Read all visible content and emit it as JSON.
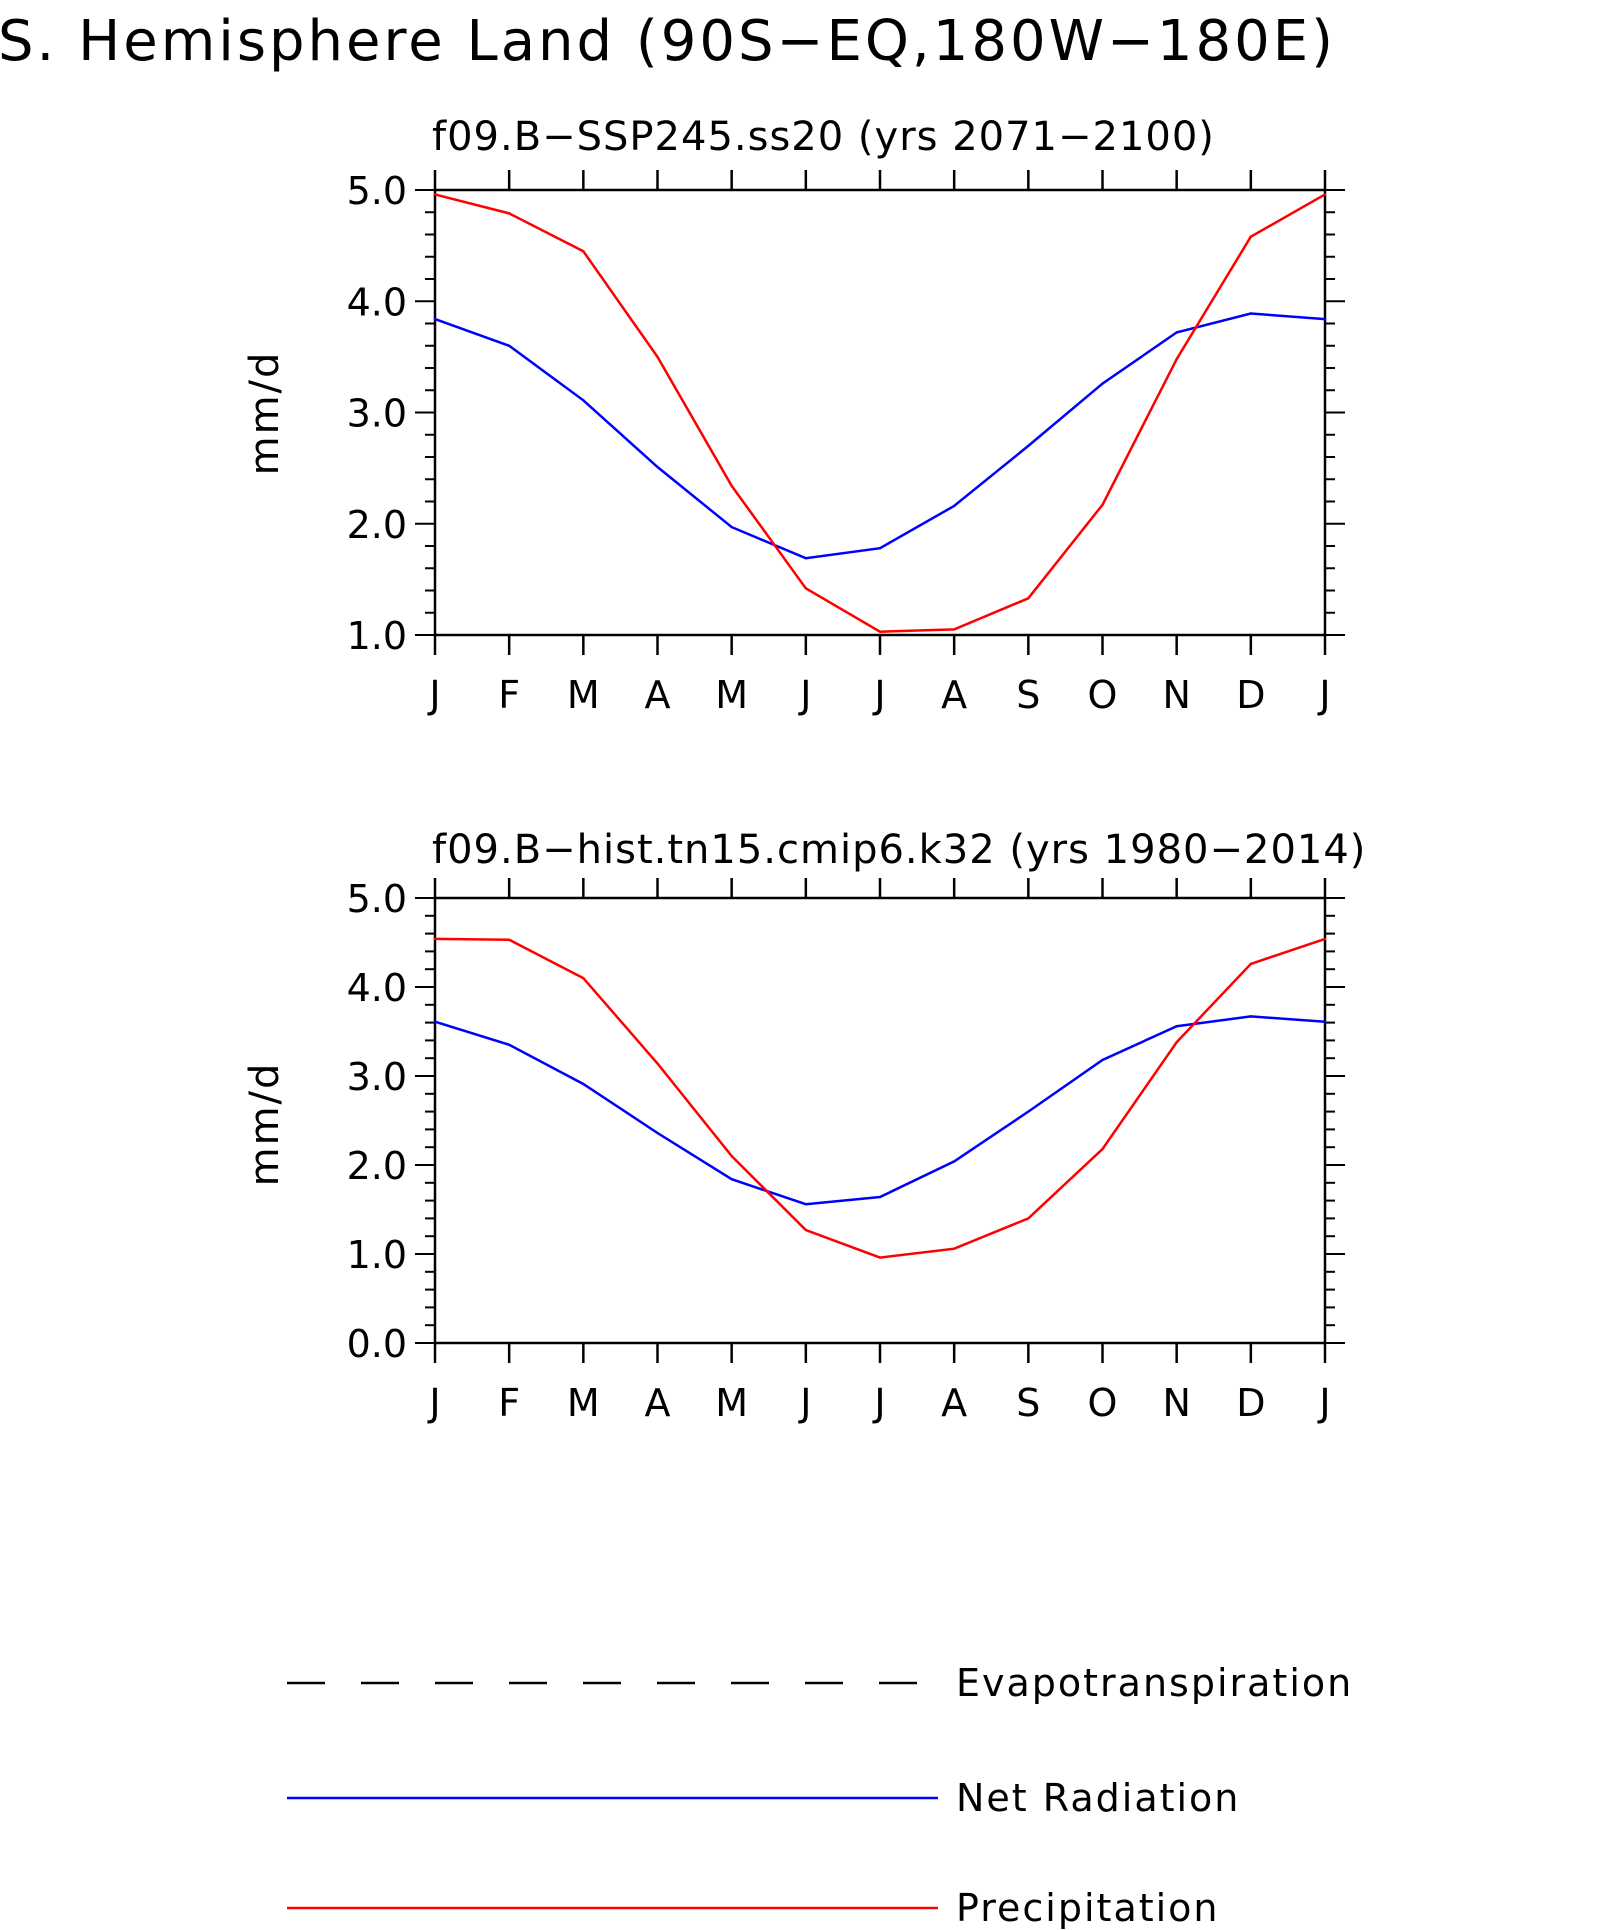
{
  "title": "S. Hemisphere Land (90S−EQ,180W−180E)",
  "chart_data": [
    {
      "type": "line",
      "title": "f09.B−SSP245.ss20 (yrs 2071−2100)",
      "ylabel": "mm/d",
      "xlabel": "",
      "categories": [
        "J",
        "F",
        "M",
        "A",
        "M",
        "J",
        "J",
        "A",
        "S",
        "O",
        "N",
        "D",
        "J"
      ],
      "ylim": [
        1.0,
        5.0
      ],
      "yticks": [
        "1.0",
        "2.0",
        "3.0",
        "4.0",
        "5.0"
      ],
      "series": [
        {
          "name": "Net Radiation",
          "color": "#0000ff",
          "values": [
            3.84,
            3.6,
            3.11,
            2.51,
            1.97,
            1.69,
            1.78,
            2.16,
            2.7,
            3.26,
            3.72,
            3.89,
            3.84
          ]
        },
        {
          "name": "Precipitation",
          "color": "#ff0000",
          "values": [
            4.96,
            4.79,
            4.45,
            3.5,
            2.34,
            1.42,
            1.03,
            1.05,
            1.33,
            2.17,
            3.48,
            4.58,
            4.96
          ]
        }
      ]
    },
    {
      "type": "line",
      "title": "f09.B−hist.tn15.cmip6.k32 (yrs 1980−2014)",
      "ylabel": "mm/d",
      "xlabel": "",
      "categories": [
        "J",
        "F",
        "M",
        "A",
        "M",
        "J",
        "J",
        "A",
        "S",
        "O",
        "N",
        "D",
        "J"
      ],
      "ylim": [
        0.0,
        5.0
      ],
      "yticks": [
        "0.0",
        "1.0",
        "2.0",
        "3.0",
        "4.0",
        "5.0"
      ],
      "series": [
        {
          "name": "Net Radiation",
          "color": "#0000ff",
          "values": [
            3.61,
            3.35,
            2.91,
            2.36,
            1.84,
            1.56,
            1.64,
            2.04,
            2.6,
            3.18,
            3.56,
            3.67,
            3.61
          ]
        },
        {
          "name": "Precipitation",
          "color": "#ff0000",
          "values": [
            4.54,
            4.53,
            4.1,
            3.14,
            2.1,
            1.27,
            0.96,
            1.06,
            1.4,
            2.18,
            3.38,
            4.26,
            4.54
          ]
        }
      ]
    }
  ],
  "legend": [
    {
      "label": "Evapotranspiration",
      "color": "#000000",
      "style": "dashed"
    },
    {
      "label": "Net Radiation",
      "color": "#0000ff",
      "style": "solid"
    },
    {
      "label": "Precipitation",
      "color": "#ff0000",
      "style": "solid"
    }
  ]
}
